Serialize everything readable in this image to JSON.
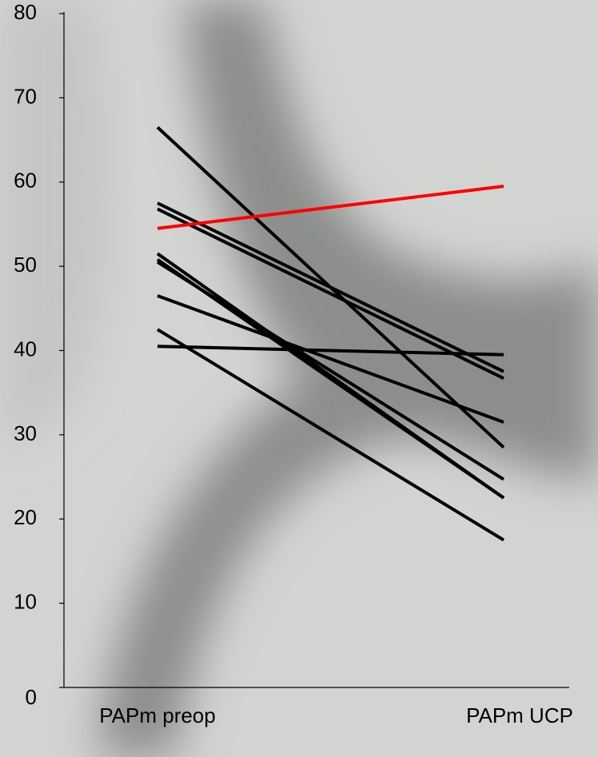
{
  "chart_data": {
    "type": "line",
    "categories": [
      "PAPm preop",
      "PAPm UCP"
    ],
    "series": [
      {
        "color": "#000000",
        "values": [
          66.5,
          28.5
        ]
      },
      {
        "color": "#000000",
        "values": [
          57.5,
          37.5
        ]
      },
      {
        "color": "#000000",
        "values": [
          56.8,
          36.7
        ]
      },
      {
        "color": "#000000",
        "values": [
          51.5,
          22.5
        ]
      },
      {
        "color": "#000000",
        "values": [
          50.8,
          22.5
        ]
      },
      {
        "color": "#000000",
        "values": [
          50.5,
          24.7
        ]
      },
      {
        "color": "#000000",
        "values": [
          46.5,
          31.5
        ]
      },
      {
        "color": "#000000",
        "values": [
          42.5,
          17.5
        ]
      },
      {
        "color": "#000000",
        "values": [
          40.5,
          39.5
        ]
      },
      {
        "color": "#ff0000",
        "values": [
          54.5,
          59.5
        ]
      }
    ],
    "ylim": [
      0,
      80
    ],
    "yticks": [
      0,
      10,
      20,
      30,
      40,
      50,
      60,
      70,
      80
    ],
    "grid": false
  }
}
